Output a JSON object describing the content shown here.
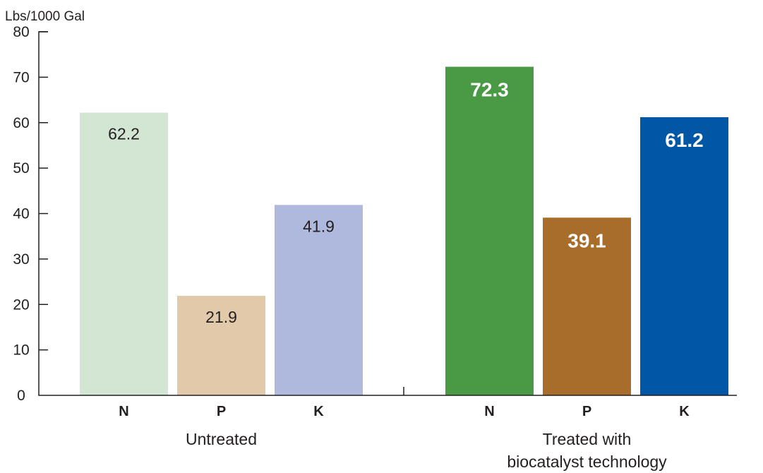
{
  "chart_data": {
    "type": "bar",
    "ylabel": "Lbs/1000 Gal",
    "ylim": [
      0,
      80
    ],
    "yticks": [
      0,
      10,
      20,
      30,
      40,
      50,
      60,
      70,
      80
    ],
    "groups": [
      {
        "label": [
          "Untreated"
        ],
        "bars": [
          {
            "category": "N",
            "value": 62.2,
            "label": "62.2",
            "color": "#d3e6d3",
            "label_style": "regular"
          },
          {
            "category": "P",
            "value": 21.9,
            "label": "21.9",
            "color": "#e2c9aa",
            "label_style": "regular"
          },
          {
            "category": "K",
            "value": 41.9,
            "label": "41.9",
            "color": "#afb9dd",
            "label_style": "regular"
          }
        ]
      },
      {
        "label": [
          "Treated with",
          "biocatalyst technology"
        ],
        "bars": [
          {
            "category": "N",
            "value": 72.3,
            "label": "72.3",
            "color": "#4a9a45",
            "label_style": "bold"
          },
          {
            "category": "P",
            "value": 39.1,
            "label": "39.1",
            "color": "#a86d2a",
            "label_style": "bold"
          },
          {
            "category": "K",
            "value": 61.2,
            "label": "61.2",
            "color": "#0057a6",
            "label_style": "bold"
          }
        ]
      }
    ]
  }
}
